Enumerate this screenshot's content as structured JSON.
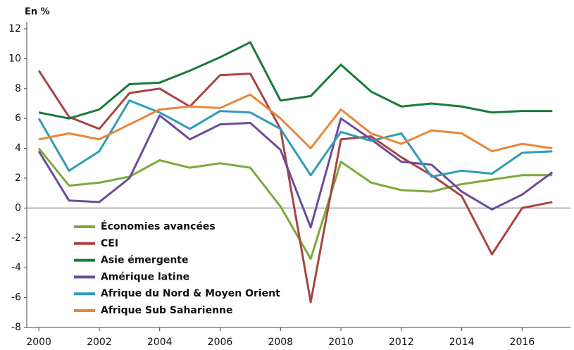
{
  "chart_data": {
    "type": "line",
    "y_label": "En %",
    "x": [
      2000,
      2001,
      2002,
      2003,
      2004,
      2005,
      2006,
      2007,
      2008,
      2009,
      2010,
      2011,
      2012,
      2013,
      2014,
      2015,
      2016,
      2017
    ],
    "xlim": [
      1999.6,
      2017.6
    ],
    "xticks": [
      2000,
      2002,
      2004,
      2006,
      2008,
      2010,
      2012,
      2014,
      2016
    ],
    "ylim": [
      -8,
      12
    ],
    "yticks": [
      12,
      10,
      8,
      6,
      4,
      2,
      0,
      -2,
      -4,
      -6,
      -8
    ],
    "series": [
      {
        "name": "Économies avancées",
        "color": "#7aab3a",
        "values": [
          4.0,
          1.5,
          1.7,
          2.1,
          3.2,
          2.7,
          3.0,
          2.7,
          0.1,
          -3.4,
          3.1,
          1.7,
          1.2,
          1.1,
          1.6,
          1.9,
          2.2,
          2.2
        ]
      },
      {
        "name": "CEI",
        "color": "#a94442",
        "values": [
          9.2,
          6.1,
          5.3,
          7.7,
          8.0,
          6.8,
          8.9,
          9.0,
          5.3,
          -6.3,
          4.6,
          4.8,
          3.4,
          2.2,
          0.8,
          -3.1,
          0.0,
          0.4
        ]
      },
      {
        "name": "Asie émergente",
        "color": "#1a7a3a",
        "values": [
          6.4,
          6.0,
          6.6,
          8.3,
          8.4,
          9.2,
          10.1,
          11.1,
          7.2,
          7.5,
          9.6,
          7.8,
          6.8,
          7.0,
          6.8,
          6.4,
          6.5,
          6.5
        ]
      },
      {
        "name": "Amérique latine",
        "color": "#6a4c9c",
        "values": [
          3.8,
          0.5,
          0.4,
          2.0,
          6.2,
          4.6,
          5.6,
          5.7,
          3.9,
          -1.3,
          6.0,
          4.6,
          3.1,
          2.9,
          1.1,
          -0.1,
          0.9,
          2.4
        ]
      },
      {
        "name": "Afrique du Nord & Moyen Orient",
        "color": "#2f9cb5",
        "values": [
          6.0,
          2.5,
          3.8,
          7.2,
          6.4,
          5.3,
          6.5,
          6.4,
          5.3,
          2.2,
          5.1,
          4.5,
          5.0,
          2.1,
          2.5,
          2.3,
          3.7,
          3.8
        ]
      },
      {
        "name": "Afrique Sub Saharienne",
        "color": "#e8873a",
        "values": [
          4.6,
          5.0,
          4.6,
          5.6,
          6.6,
          6.8,
          6.7,
          7.6,
          6.0,
          4.0,
          6.6,
          5.0,
          4.3,
          5.2,
          5.0,
          3.8,
          4.3,
          4.0
        ]
      }
    ],
    "legend": "lower left"
  }
}
